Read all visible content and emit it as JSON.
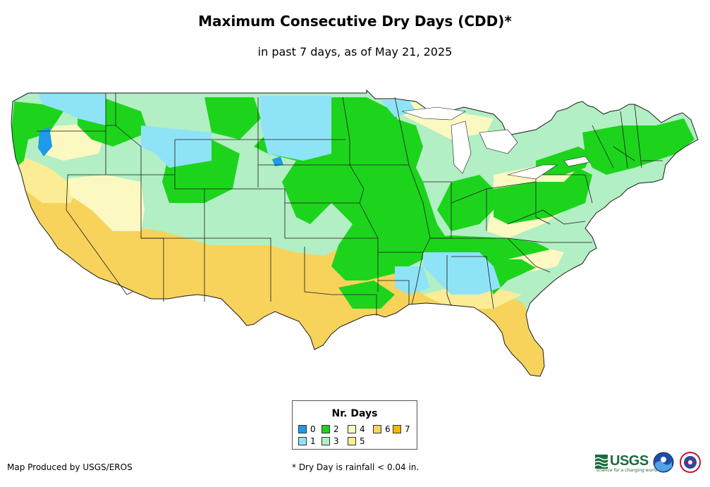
{
  "header": {
    "title": "Maximum Consecutive Dry Days (CDD)*",
    "subtitle": "in past 7 days, as of May 21, 2025"
  },
  "legend": {
    "title": "Nr. Days",
    "items": [
      {
        "label": "0",
        "color": "#1e9be8"
      },
      {
        "label": "1",
        "color": "#8fe3f7"
      },
      {
        "label": "2",
        "color": "#1dd41d"
      },
      {
        "label": "3",
        "color": "#b2efc4"
      },
      {
        "label": "4",
        "color": "#fbf8c2"
      },
      {
        "label": "5",
        "color": "#fbec95"
      },
      {
        "label": "6",
        "color": "#f7d35c"
      },
      {
        "label": "7",
        "color": "#f4b600"
      }
    ]
  },
  "footer": {
    "credit": "Map Produced by USGS/EROS",
    "footnote": "* Dry Day is rainfall < 0.04 in.",
    "usgs_logo": "USGS",
    "usgs_tagline": "science for a changing world"
  }
}
